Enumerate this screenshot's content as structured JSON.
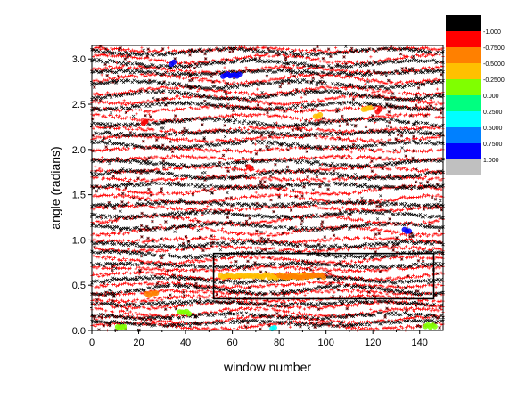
{
  "chart_data": {
    "type": "scatter",
    "xlabel": "window number",
    "ylabel": "angle (radians)",
    "xlim": [
      0,
      150
    ],
    "ylim": [
      0,
      3.15
    ],
    "x_ticks": [
      "0",
      "20",
      "40",
      "60",
      "80",
      "100",
      "120",
      "140"
    ],
    "y_ticks": [
      "0.0",
      "0.5",
      "1.0",
      "1.5",
      "2.0",
      "2.5",
      "3.0"
    ],
    "x_tick_values": [
      0,
      20,
      40,
      60,
      80,
      100,
      120,
      140
    ],
    "y_tick_values": [
      0.0,
      0.5,
      1.0,
      1.5,
      2.0,
      2.5,
      3.0
    ],
    "grid": false,
    "legend_placement": "top-right outside plot",
    "colorbar": {
      "labels": [
        "-1.000",
        "-0.7500",
        "-0.5000",
        "-0.2500",
        "0.000",
        "0.2500",
        "0.5000",
        "0.7500",
        "1.000"
      ],
      "colors": [
        "#000000",
        "#ff0000",
        "#ff8000",
        "#ffc000",
        "#80ff00",
        "#00ff80",
        "#00ffff",
        "#0080ff",
        "#0000ff",
        "#c0c0c0"
      ]
    },
    "series": [
      {
        "marker": "+",
        "color": "#ff0000",
        "band_angles": [
          0.05,
          0.12,
          0.2,
          0.28,
          0.35,
          0.42,
          0.5,
          0.6,
          0.68,
          0.78,
          0.9,
          1.0,
          1.1,
          1.22,
          1.35,
          1.45,
          1.55,
          1.68,
          1.78,
          1.9,
          2.0,
          2.12,
          2.22,
          2.35,
          2.45,
          2.55,
          2.65,
          2.78,
          2.88,
          3.0,
          3.1
        ]
      },
      {
        "marker": "x",
        "color": "#000000",
        "band_angles": [
          0.08,
          0.16,
          0.3,
          0.45,
          0.56,
          0.72,
          0.84,
          0.95,
          1.15,
          1.28,
          1.4,
          1.6,
          1.72,
          1.85,
          2.05,
          2.18,
          2.3,
          2.48,
          2.6,
          2.72,
          2.85,
          2.95,
          3.08
        ]
      }
    ],
    "highlights": [
      {
        "x": 60,
        "y": 2.82,
        "color": "#0000ff",
        "width": 8
      },
      {
        "x": 35,
        "y": 2.95,
        "color": "#0000ff",
        "width": 2
      },
      {
        "x": 23,
        "y": 2.3,
        "color": "#ff0000",
        "width": 2
      },
      {
        "x": 97,
        "y": 2.37,
        "color": "#ffc000",
        "width": 3
      },
      {
        "x": 118,
        "y": 2.45,
        "color": "#ffc000",
        "width": 4
      },
      {
        "x": 123,
        "y": 2.43,
        "color": "#ff0000",
        "width": 2
      },
      {
        "x": 68,
        "y": 1.8,
        "color": "#ff0000",
        "width": 2
      },
      {
        "x": 135,
        "y": 1.1,
        "color": "#0000ff",
        "width": 3
      },
      {
        "x": 26,
        "y": 0.4,
        "color": "#ff8000",
        "width": 5
      },
      {
        "x": 40,
        "y": 0.2,
        "color": "#80ff00",
        "width": 5
      },
      {
        "x": 13,
        "y": 0.03,
        "color": "#80ff00",
        "width": 4
      },
      {
        "x": 78,
        "y": 0.02,
        "color": "#00ffff",
        "width": 2
      },
      {
        "x": 145,
        "y": 0.05,
        "color": "#80ff00",
        "width": 5
      },
      {
        "x": 75,
        "y": 0.6,
        "color": "#ffc000",
        "width": 40
      },
      {
        "x": 90,
        "y": 0.6,
        "color": "#ff8000",
        "width": 20
      }
    ],
    "annotation_box": {
      "x0": 52,
      "x1": 146,
      "y0": 0.35,
      "y1": 0.85
    }
  }
}
